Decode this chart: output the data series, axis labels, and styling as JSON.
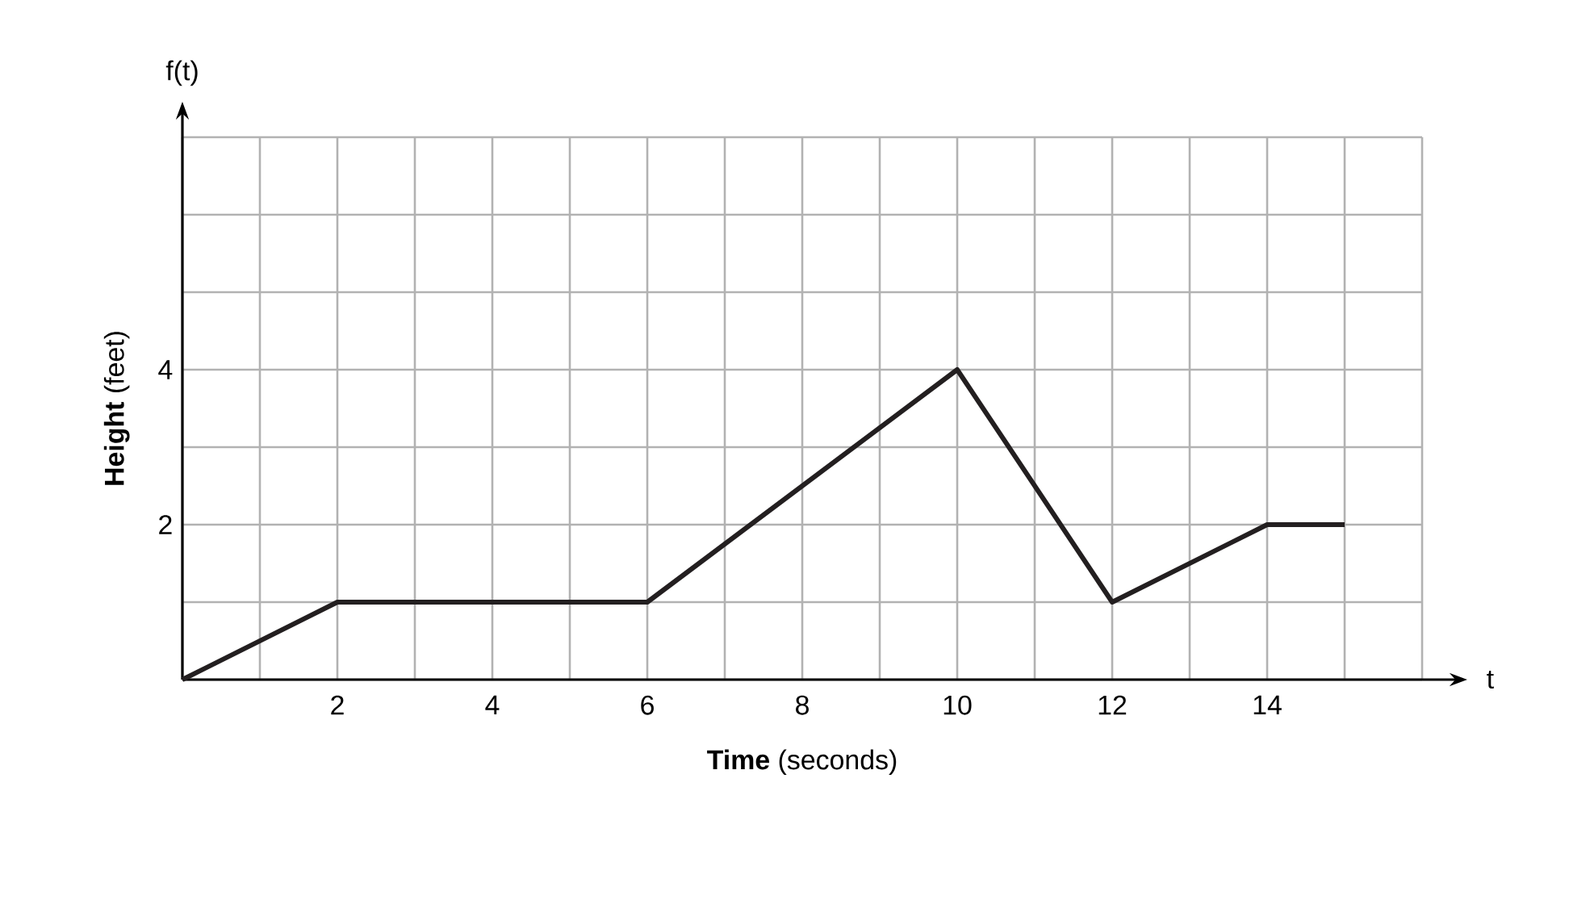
{
  "chart_data": {
    "type": "line",
    "xlabel": "**Time** (seconds)",
    "ylabel": "**Height** (feet)",
    "annotations": [
      "f(t)",
      "t"
    ],
    "x": [
      0,
      2,
      6,
      10,
      12,
      14,
      15
    ],
    "values": [
      0,
      1,
      1,
      4,
      1,
      2,
      2
    ],
    "color": "#231f20",
    "xlim": [
      0,
      16
    ],
    "ylim": [
      0,
      7
    ],
    "xticks": [
      {
        "value": 0,
        "label": null
      },
      {
        "value": 1,
        "label": null
      },
      2,
      {
        "value": 3,
        "label": null
      },
      4,
      {
        "value": 5,
        "label": null
      },
      6,
      {
        "value": 7,
        "label": null
      },
      8,
      {
        "value": 9,
        "label": null
      },
      10,
      {
        "value": 11,
        "label": null
      },
      12,
      {
        "value": 13,
        "label": null
      },
      14,
      {
        "value": 15,
        "label": null
      },
      {
        "value": 16,
        "label": null
      }
    ],
    "yticks": [
      {
        "value": 0,
        "label": null
      },
      {
        "value": 1,
        "label": null
      },
      2,
      {
        "value": 3,
        "label": null
      },
      4,
      {
        "value": 5,
        "label": null
      },
      {
        "value": 6,
        "label": null
      },
      {
        "value": 7,
        "label": null
      }
    ],
    "grid": true,
    "marker": "none",
    "line_style": "solid"
  }
}
